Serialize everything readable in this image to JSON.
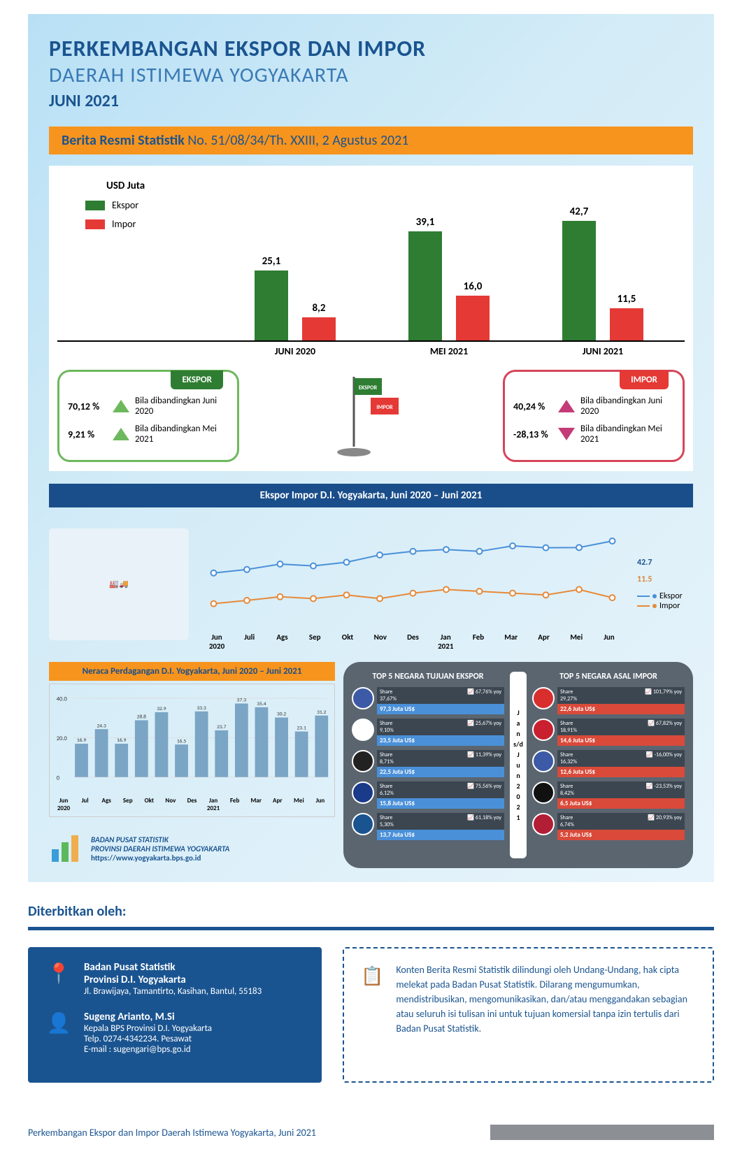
{
  "colors": {
    "ekspor": "#2e7d32",
    "impor": "#e53935",
    "navy": "#1a5490",
    "navy_bar": "#1a4e8a",
    "orange": "#f7941d",
    "panel_grey": "#5a6570",
    "ex_accent": "#4a90d9",
    "im_accent": "#d94a3a",
    "ekspor_box_border": "#6db85c",
    "impor_box_border": "#d6455a",
    "arrow_green": "#6db85c",
    "arrow_magenta": "#c43b77",
    "neraca_bar": "#7aa5c5"
  },
  "header": {
    "title_line1": "PERKEMBANGAN EKSPOR DAN IMPOR",
    "title_line2": "DAERAH ISTIMEWA YOGYAKARTA",
    "title_line3": "JUNI 2021",
    "brs_bold": "Berita Resmi Statistik",
    "brs_rest": " No. 51/08/34/Th. XXIII, 2 Agustus 2021"
  },
  "bar_chart": {
    "unit_label": "USD Juta",
    "legend": {
      "ekspor": "Ekspor",
      "impor": "Impor"
    },
    "y_max": 50,
    "groups": [
      {
        "cat": "JUNI 2020",
        "ekspor": 25.1,
        "ekspor_lbl": "25,1",
        "impor": 8.2,
        "impor_lbl": "8,2",
        "x": 250
      },
      {
        "cat": "MEI 2021",
        "ekspor": 39.1,
        "ekspor_lbl": "39,1",
        "impor": 16.0,
        "impor_lbl": "16,0",
        "x": 470
      },
      {
        "cat": "JUNI 2021",
        "ekspor": 42.7,
        "ekspor_lbl": "42,7",
        "impor": 11.5,
        "impor_lbl": "11,5",
        "x": 690
      }
    ]
  },
  "compare": {
    "ekspor_tag": "EKSPOR",
    "impor_tag": "IMPOR",
    "flag_ekspor": "EKSPOR",
    "flag_impor": "IMPOR",
    "ekspor": [
      {
        "pct": "70,12 %",
        "dir": "up",
        "txt": "Bila dibandingkan Juni 2020"
      },
      {
        "pct": "9,21 %",
        "dir": "up",
        "txt": "Bila dibandingkan Mei 2021"
      }
    ],
    "impor": [
      {
        "pct": "40,24 %",
        "dir": "up",
        "txt": "Bila dibandingkan Juni 2020"
      },
      {
        "pct": "-28,13 %",
        "dir": "down",
        "txt": "Bila dibandingkan Mei 2021"
      }
    ]
  },
  "timeline": {
    "title": "Ekspor Impor D.I. Yogyakarta, Juni 2020 – Juni 2021",
    "legend_ekspor": "Ekspor",
    "legend_impor": "Impor",
    "end_ekspor": "42.7",
    "end_impor": "11.5",
    "x_labels": [
      "Jun 2020",
      "Juli",
      "Ags",
      "Sep",
      "Okt",
      "Nov",
      "Des",
      "Jan 2021",
      "Feb",
      "Mar",
      "Apr",
      "Mei",
      "Jun"
    ],
    "ekspor_values": [
      25.1,
      27,
      30,
      29,
      31,
      35,
      37,
      38,
      37,
      40,
      39,
      39.1,
      42.7
    ],
    "impor_values": [
      8.2,
      10,
      12,
      11,
      13,
      11,
      14,
      16,
      15,
      14,
      13,
      16.0,
      11.5
    ],
    "y_max": 50
  },
  "neraca": {
    "title": "Neraca Perdagangan D.I. Yogyakarta, Juni 2020 – Juni 2021",
    "y_ticks": [
      "40.0",
      "20.0",
      "0"
    ],
    "x_labels": [
      "Jun 2020",
      "Jul",
      "Ags",
      "Sep",
      "Okt",
      "Nov",
      "Des",
      "Jan 2021",
      "Feb",
      "Mar",
      "Apr",
      "Mei",
      "Jun"
    ],
    "values": [
      16.9,
      24.3,
      16.9,
      28.8,
      32.9,
      16.5,
      33.3,
      23.7,
      37.3,
      35.4,
      30.2,
      23.1,
      31.2
    ],
    "y_max": 40
  },
  "bps": {
    "line1": "BADAN PUSAT STATISTIK",
    "line2": "PROVINSI DAERAH ISTIMEWA YOGYAKARTA",
    "url": "https://www.yogyakarta.bps.go.id"
  },
  "top5": {
    "export_title": "TOP 5 NEGARA TUJUAN EKSPOR",
    "import_title": "TOP 5 NEGARA ASAL IMPOR",
    "period": "Jan s/d Jun 2021",
    "mid_chars": [
      "J",
      "a",
      "n",
      "s/d",
      "J",
      "u",
      "n",
      "2",
      "0",
      "2",
      "1"
    ],
    "exports": [
      {
        "flag": "#3c5aa6",
        "share": "37,67%",
        "yoy": "67,76% yoy",
        "value": "97,3 Juta US$"
      },
      {
        "flag": "#ffffff",
        "share": "9,10%",
        "yoy": "25,67% yoy",
        "value": "23,5 Juta US$"
      },
      {
        "flag": "#222222",
        "share": "8,71%",
        "yoy": "11,39% yoy",
        "value": "22,5 Juta US$"
      },
      {
        "flag": "#1a3a8a",
        "share": "6,12%",
        "yoy": "75,56% yoy",
        "value": "15,8 Juta US$"
      },
      {
        "flag": "#1a5490",
        "share": "5,30%",
        "yoy": "61,18% yoy",
        "value": "13,7 Juta US$"
      }
    ],
    "imports": [
      {
        "flag": "#d82e2e",
        "share": "29,27%",
        "yoy": "101,79% yoy",
        "value": "22,6 Juta US$"
      },
      {
        "flag": "#c8202f",
        "share": "18,91%",
        "yoy": "67,82% yoy",
        "value": "14,6 Juta US$"
      },
      {
        "flag": "#3c5aa6",
        "share": "16,32%",
        "yoy": "-16,00% yoy",
        "value": "12,6 Juta US$"
      },
      {
        "flag": "#111111",
        "share": "8,42%",
        "yoy": "-23,53% yoy",
        "value": "6,5 Juta US$"
      },
      {
        "flag": "#b21e35",
        "share": "6,74%",
        "yoy": "20,93% yoy",
        "value": "5,2 Juta US$"
      }
    ],
    "share_lbl": "Share"
  },
  "publish": {
    "heading": "Diterbitkan oleh:",
    "org_title": "Badan Pusat Statistik",
    "org_sub": "Provinsi D.I. Yogyakarta",
    "address": "Jl. Brawijaya, Tamantirto, Kasihan, Bantul, 55183",
    "person_name": "Sugeng Arianto, M.Si",
    "person_title": "Kepala BPS Provinsi D.I. Yogyakarta",
    "phone": "Telp. 0274-4342234. Pesawat",
    "email": "E-mail : sugengari@bps.go.id",
    "disclaimer": "Konten Berita Resmi Statistik dilindungi oleh Undang-Undang, hak cipta melekat pada Badan Pusat Statistik. Dilarang mengumumkan, mendistribusikan, mengomunikasikan, dan/atau menggandakan sebagian atau seluruh isi tulisan ini untuk tujuan komersial tanpa izin tertulis dari Badan Pusat Statistik."
  },
  "footer_text": "Perkembangan Ekspor dan Impor Daerah Istimewa Yogyakarta, Juni 2021"
}
